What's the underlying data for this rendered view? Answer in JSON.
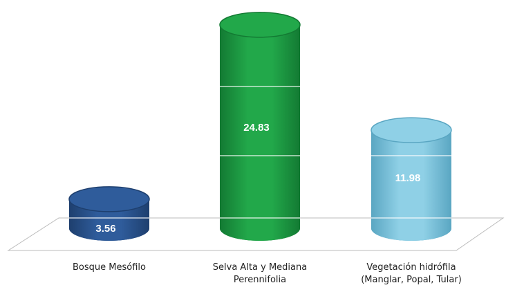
{
  "chart_data": {
    "type": "bar",
    "style": "3d-cylinder",
    "categories": [
      "Bosque Mesófilo",
      "Selva Alta y Mediana\nPerennifolia",
      "Vegetación hidrófila\n(Manglar, Popal, Tular)"
    ],
    "values": [
      3.56,
      24.83,
      11.98
    ],
    "value_labels": [
      "3.56",
      "24.83",
      "11.98"
    ],
    "ylim": [
      0,
      26
    ],
    "grid": true,
    "legend": "none",
    "colors": [
      "#2f5c9b",
      "#22a84a",
      "#8fd0e6"
    ],
    "edge_colors": [
      "#1e3f6e",
      "#137a33",
      "#5aa6c2"
    ],
    "gridline_color": "#ffffff",
    "floor_color": "#bbbbbb"
  }
}
